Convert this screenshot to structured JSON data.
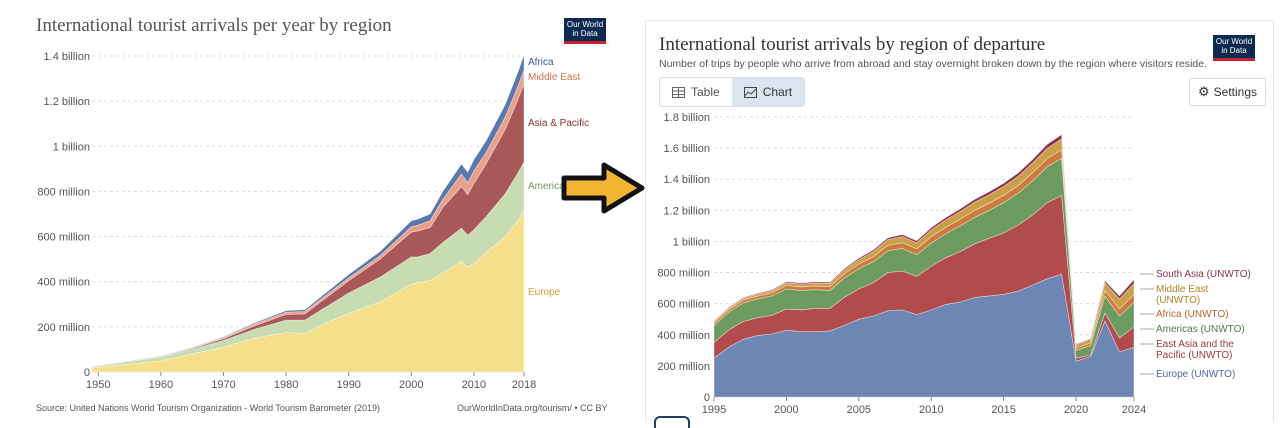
{
  "left_chart": {
    "title": "International tourist arrivals per year by region",
    "logo_line1": "Our World",
    "logo_line2": "in Data",
    "source": "Source: United Nations World Tourism Organization - World Tourism Barometer (2019)",
    "credit": "OurWorldInData.org/tourism/ • CC BY"
  },
  "right_chart": {
    "title": "International tourist arrivals by region of departure",
    "subtitle": "Number of trips by people who arrive from abroad and stay overnight broken down by the region where visitors reside.",
    "logo_line1": "Our World",
    "logo_line2": "in Data",
    "tab_table": "Table",
    "tab_chart": "Chart",
    "settings_label": "Settings"
  },
  "icons": {
    "table": "table-icon",
    "chart": "chart-icon",
    "settings": "gear-icon",
    "arrow": "right-arrow-icon"
  },
  "colors": {
    "europe_left": "#f6df8a",
    "americas_left": "#c7ddb1",
    "asia_pacific_left": "#a85858",
    "middle_east_left": "#e9a08a",
    "africa_left": "#5b77ad",
    "europe_right": "#6e86b3",
    "east_asia_right": "#b24b4b",
    "americas_right": "#6d9a5e",
    "africa_right": "#cf7a3d",
    "middle_east_right": "#c9a048",
    "south_asia_right": "#8b2f4f",
    "arrow": "#f2b634"
  },
  "chart_data": [
    {
      "type": "area",
      "stacked": true,
      "title": "International tourist arrivals per year by region",
      "xlabel": "",
      "ylabel": "",
      "xlim": [
        1949,
        2018
      ],
      "ylim": [
        0,
        1400000000
      ],
      "x_ticks": [
        1950,
        1960,
        1970,
        1980,
        1990,
        2000,
        2010,
        2018
      ],
      "x_tick_labels": [
        "1950",
        "1960",
        "1970",
        "1980",
        "1990",
        "2000",
        "2010",
        "2018"
      ],
      "y_ticks": [
        0,
        200000000,
        400000000,
        600000000,
        800000000,
        1000000000,
        1200000000,
        1400000000
      ],
      "y_tick_labels": [
        "0",
        "200 million",
        "400 million",
        "600 million",
        "800 million",
        "1 billion",
        "1.2 billion",
        "1.4 billion"
      ],
      "grid": "horizontal dashed",
      "x": [
        1949,
        1960,
        1965,
        1970,
        1975,
        1980,
        1983,
        1985,
        1990,
        1995,
        2000,
        2001,
        2003,
        2005,
        2008,
        2009,
        2010,
        2012,
        2015,
        2017,
        2018
      ],
      "series": [
        {
          "name": "Europe",
          "values": [
            18,
            50,
            80,
            110,
            150,
            175,
            170,
            200,
            260,
            310,
            390,
            395,
            405,
            440,
            490,
            465,
            480,
            530,
            600,
            670,
            715
          ]
        },
        {
          "name": "Americas",
          "values": [
            5,
            16,
            20,
            30,
            40,
            55,
            60,
            65,
            90,
            110,
            120,
            115,
            120,
            133,
            147,
            141,
            150,
            160,
            190,
            210,
            216
          ]
        },
        {
          "name": "Asia & Pacific",
          "values": [
            0.5,
            2,
            4,
            8,
            15,
            25,
            28,
            35,
            55,
            80,
            110,
            115,
            115,
            155,
            185,
            180,
            205,
            235,
            285,
            325,
            347
          ]
        },
        {
          "name": "Middle East",
          "values": [
            1,
            2,
            3,
            5,
            8,
            10,
            10,
            11,
            12,
            15,
            24,
            25,
            30,
            35,
            55,
            53,
            56,
            50,
            55,
            58,
            60
          ]
        },
        {
          "name": "Africa",
          "values": [
            0.5,
            1,
            2,
            3,
            5,
            7,
            8,
            10,
            15,
            19,
            26,
            27,
            30,
            36,
            44,
            46,
            50,
            52,
            54,
            63,
            67
          ]
        }
      ]
    },
    {
      "type": "area",
      "stacked": true,
      "title": "International tourist arrivals by region of departure",
      "xlabel": "",
      "ylabel": "",
      "xlim": [
        1995,
        2024
      ],
      "ylim": [
        0,
        1800000000
      ],
      "x_ticks": [
        1995,
        2000,
        2005,
        2010,
        2015,
        2020,
        2024
      ],
      "x_tick_labels": [
        "1995",
        "2000",
        "2005",
        "2010",
        "2015",
        "2020",
        "2024"
      ],
      "y_ticks": [
        0,
        200000000,
        400000000,
        600000000,
        800000000,
        1000000000,
        1200000000,
        1400000000,
        1600000000,
        1800000000
      ],
      "y_tick_labels": [
        "0",
        "200 million",
        "400 million",
        "600 million",
        "800 million",
        "1 billion",
        "1.2 billion",
        "1.4 billion",
        "1.6 billion",
        "1.8 billion"
      ],
      "grid": "horizontal dashed",
      "x": [
        1995,
        1996,
        1997,
        1998,
        1999,
        2000,
        2001,
        2002,
        2003,
        2004,
        2005,
        2006,
        2007,
        2008,
        2009,
        2010,
        2011,
        2012,
        2013,
        2014,
        2015,
        2016,
        2017,
        2018,
        2019,
        2020,
        2021,
        2022,
        2023,
        2024
      ],
      "series": [
        {
          "name": "Europe (UNWTO)",
          "values": [
            250,
            320,
            370,
            395,
            405,
            430,
            420,
            420,
            425,
            460,
            500,
            520,
            555,
            560,
            530,
            560,
            595,
            610,
            640,
            650,
            660,
            680,
            720,
            760,
            790,
            230,
            260,
            490,
            290,
            320
          ]
        },
        {
          "name": "East Asia and the Pacific (UNWTO)",
          "values": [
            100,
            110,
            115,
            115,
            120,
            135,
            140,
            150,
            145,
            180,
            195,
            215,
            245,
            250,
            245,
            280,
            300,
            325,
            345,
            370,
            395,
            425,
            450,
            490,
            505,
            20,
            10,
            50,
            90,
            130
          ]
        },
        {
          "name": "Americas (UNWTO)",
          "values": [
            110,
            115,
            120,
            120,
            125,
            130,
            125,
            120,
            115,
            125,
            130,
            135,
            140,
            145,
            140,
            150,
            155,
            165,
            170,
            180,
            195,
            205,
            220,
            230,
            240,
            50,
            60,
            110,
            140,
            160
          ]
        },
        {
          "name": "Africa (UNWTO)",
          "values": [
            15,
            16,
            17,
            18,
            19,
            22,
            23,
            24,
            25,
            27,
            30,
            32,
            35,
            37,
            37,
            40,
            41,
            43,
            45,
            46,
            47,
            49,
            51,
            53,
            55,
            15,
            18,
            35,
            45,
            50
          ]
        },
        {
          "name": "Middle East (UNWTO)",
          "values": [
            10,
            11,
            12,
            13,
            14,
            17,
            18,
            19,
            20,
            24,
            28,
            32,
            36,
            40,
            40,
            45,
            47,
            50,
            53,
            55,
            57,
            60,
            63,
            66,
            70,
            20,
            25,
            50,
            65,
            70
          ]
        },
        {
          "name": "South Asia (UNWTO)",
          "values": [
            4,
            4,
            5,
            5,
            6,
            7,
            7,
            7,
            8,
            9,
            10,
            11,
            12,
            12,
            12,
            14,
            15,
            16,
            17,
            18,
            20,
            21,
            23,
            25,
            27,
            5,
            4,
            12,
            20,
            25
          ]
        }
      ]
    }
  ]
}
